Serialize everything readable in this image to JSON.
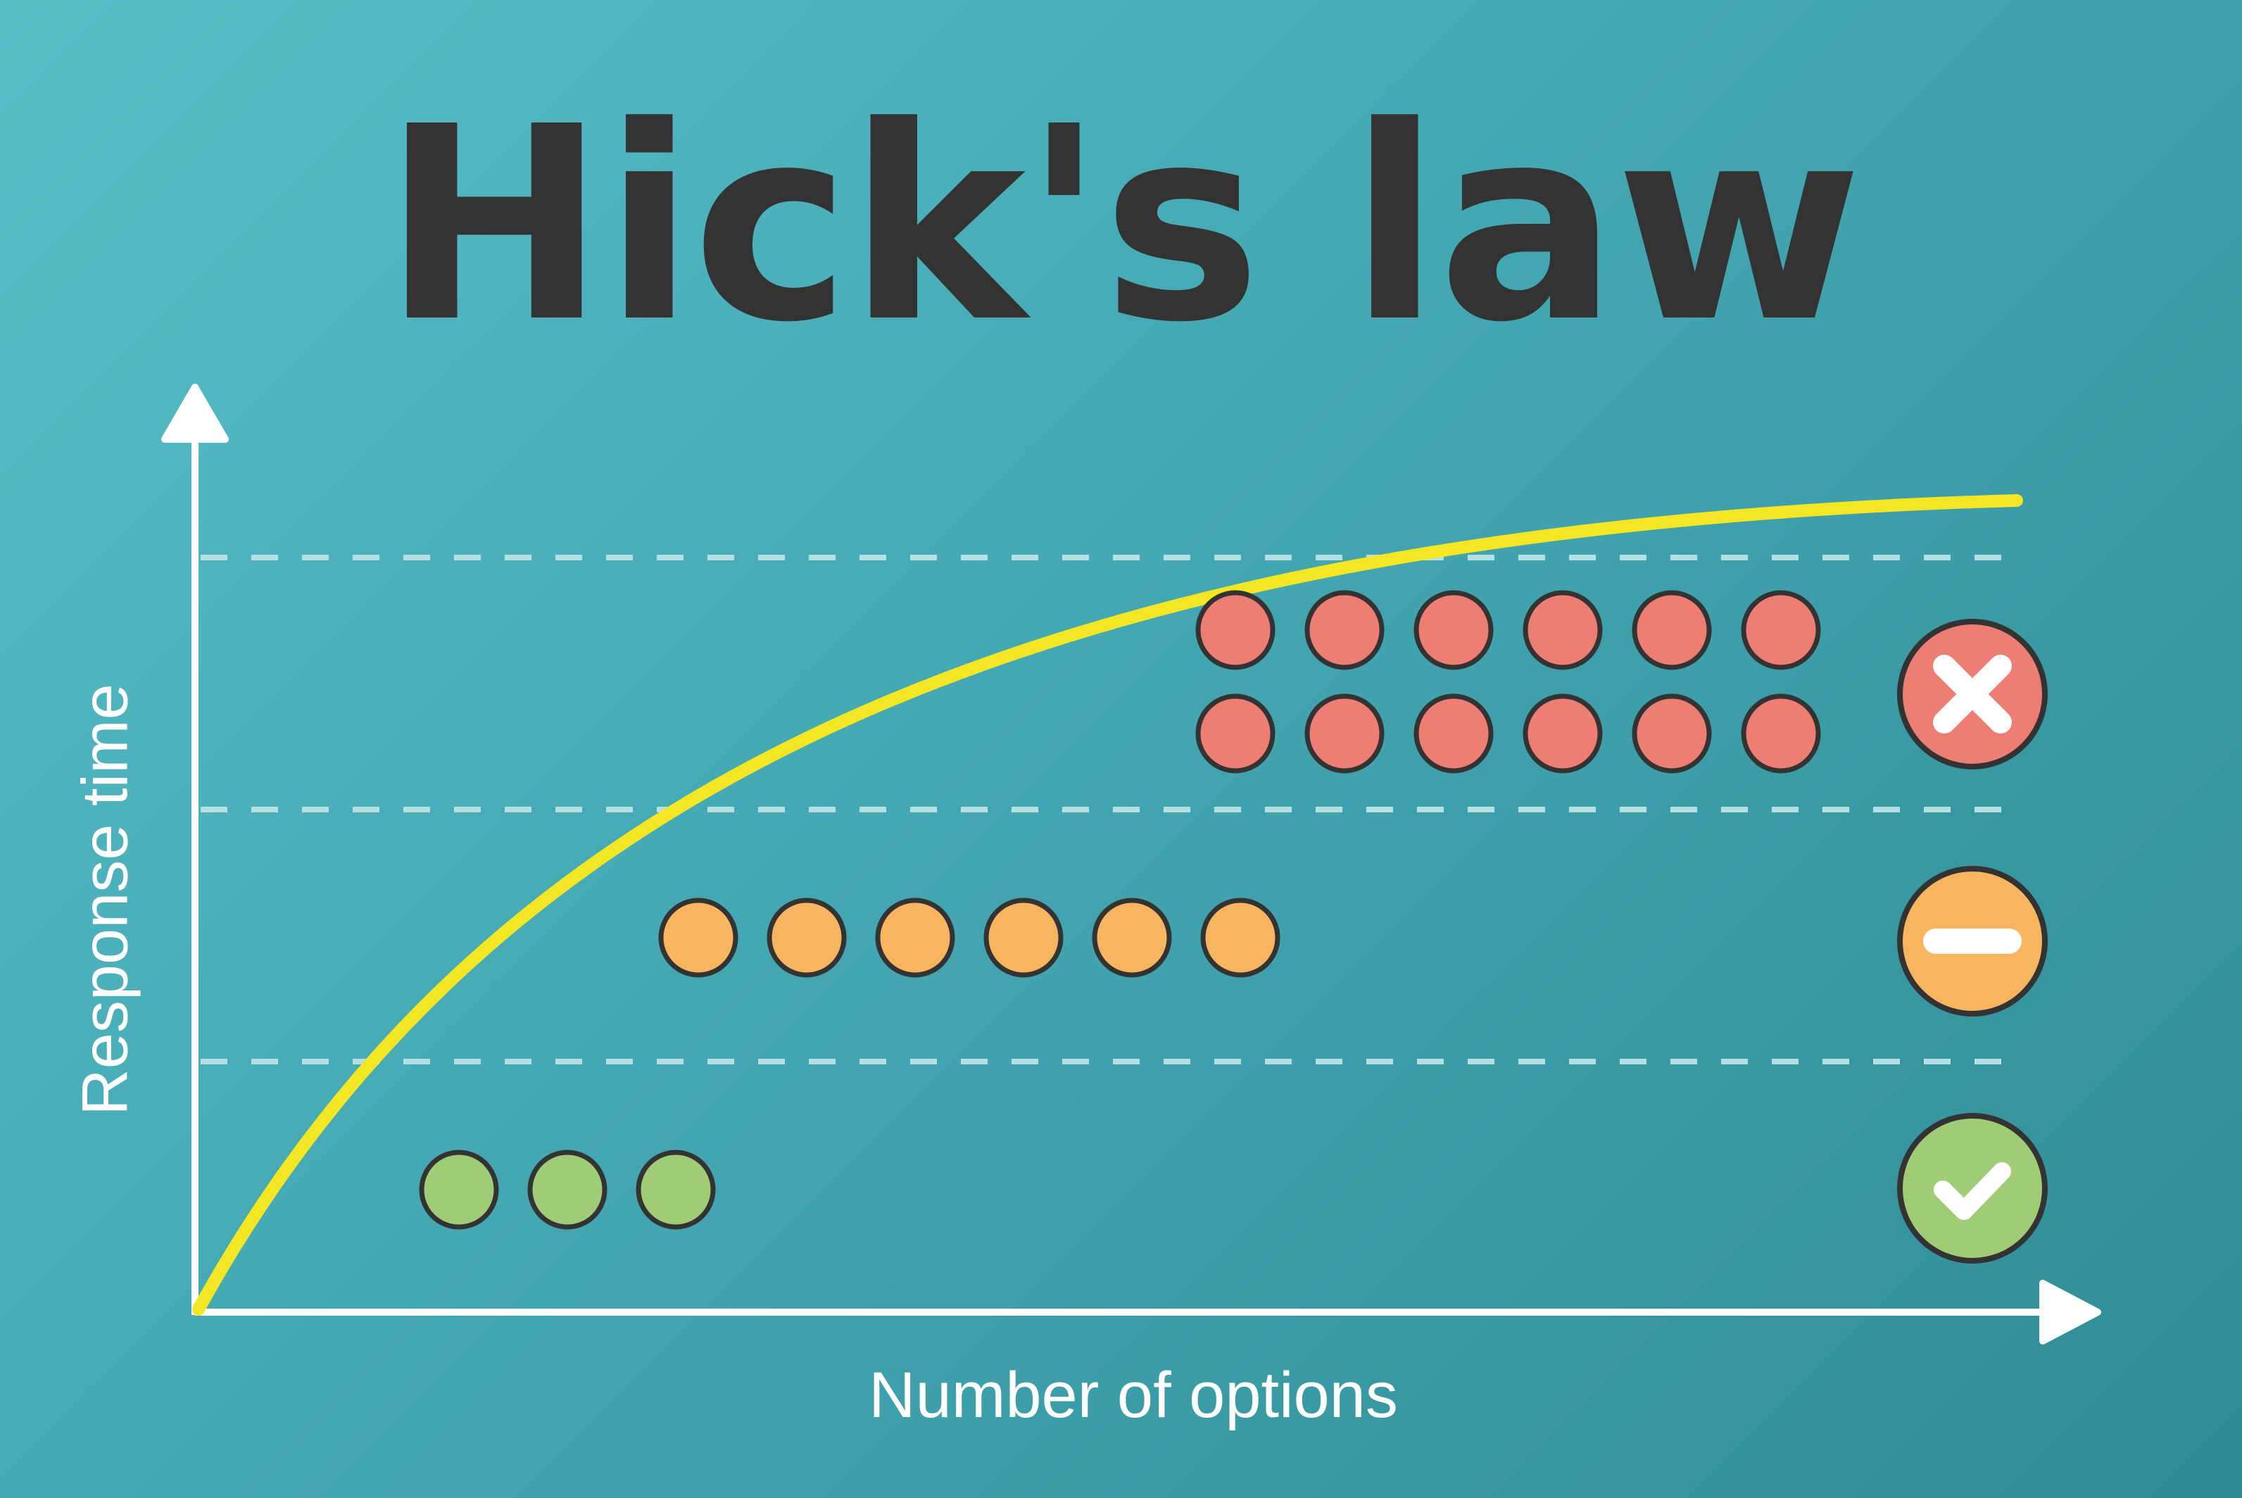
{
  "title": "Hick's law",
  "axes": {
    "x_label": "Number of options",
    "y_label": "Response time"
  },
  "colors": {
    "background_start": "#58bec6",
    "background_end": "#2f8c95",
    "title": "#333333",
    "axis": "#ffffff",
    "curve": "#f2e625",
    "dashed_line": "#b5e0e3",
    "green": "#a0cc78",
    "orange": "#f7b55f",
    "red": "#ee7e74",
    "outline": "#333333"
  },
  "levels": [
    {
      "name": "few-options",
      "option_count": 3,
      "color": "green",
      "icon": "check-icon"
    },
    {
      "name": "several-options",
      "option_count": 6,
      "color": "orange",
      "icon": "minus-icon"
    },
    {
      "name": "many-options",
      "option_count": 12,
      "color": "red",
      "icon": "cross-icon"
    }
  ]
}
